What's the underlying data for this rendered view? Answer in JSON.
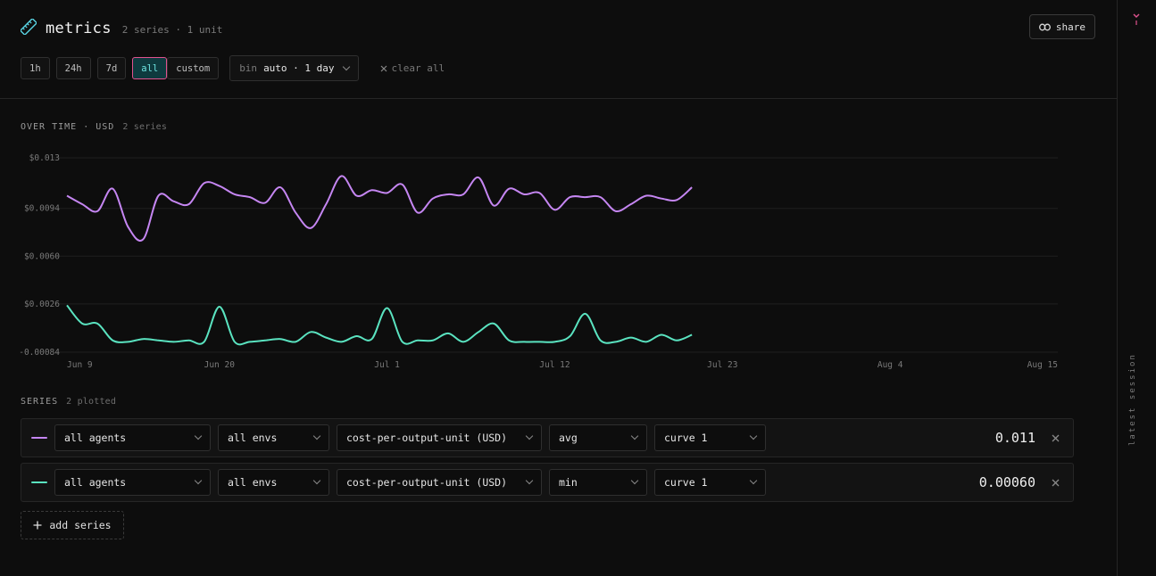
{
  "header": {
    "title": "metrics",
    "meta": "2 series · 1 unit",
    "share_label": "share"
  },
  "controls": {
    "ranges": [
      "1h",
      "24h",
      "7d",
      "all"
    ],
    "custom_label": "custom",
    "active_range": "all",
    "bin_label": "bin",
    "bin_value": "auto · 1 day",
    "clear_label": "clear all"
  },
  "chart_section": {
    "label": "OVER TIME · USD",
    "sub": "2 series"
  },
  "series_section": {
    "label": "SERIES",
    "sub": "2 plotted"
  },
  "series": [
    {
      "color": "#c586f2",
      "agent": "all agents",
      "env": "all envs",
      "metric": "cost-per-output-unit (USD)",
      "agg": "avg",
      "curve": "curve 1",
      "value": "0.011"
    },
    {
      "color": "#5ae3c0",
      "agent": "all agents",
      "env": "all envs",
      "metric": "cost-per-output-unit (USD)",
      "agg": "min",
      "curve": "curve 1",
      "value": "0.00060"
    }
  ],
  "add_series_label": "add series",
  "rail": {
    "label": "latest session",
    "accent": "#e0538f"
  },
  "chart_data": {
    "type": "line",
    "title": "",
    "xlabel": "",
    "ylabel": "",
    "y_tick_labels": [
      "$0.013",
      "$0.0094",
      "$0.0060",
      "$0.0026",
      "-0.00084"
    ],
    "y_tick_values": [
      0.013,
      0.0094,
      0.006,
      0.0026,
      -0.00084
    ],
    "ylim": [
      -0.00084,
      0.013
    ],
    "x_tick_labels": [
      "Jun 9",
      "Jun 20",
      "Jul 1",
      "Jul 12",
      "Jul 23",
      "Aug 4",
      "Aug 15"
    ],
    "x_tick_days": [
      0,
      10,
      21,
      32,
      43,
      54,
      65
    ],
    "xlim_days": [
      0,
      65
    ],
    "grid": true,
    "series": [
      {
        "color": "#c586f2",
        "values": [
          0.0103,
          0.0097,
          0.0092,
          0.0108,
          0.0081,
          0.0072,
          0.0103,
          0.0099,
          0.0097,
          0.0112,
          0.011,
          0.0104,
          0.0102,
          0.0098,
          0.0109,
          0.0091,
          0.008,
          0.0097,
          0.0117,
          0.0103,
          0.0107,
          0.0105,
          0.0111,
          0.0091,
          0.0101,
          0.0104,
          0.0104,
          0.0116,
          0.0096,
          0.0108,
          0.0104,
          0.0105,
          0.0093,
          0.0102,
          0.0102,
          0.0102,
          0.0092,
          0.0097,
          0.0103,
          0.0101,
          0.01,
          0.0109
        ]
      },
      {
        "color": "#5ae3c0",
        "values": [
          0.0025,
          0.0012,
          0.0012,
          0.0,
          -0.0001,
          0.0001,
          0.0,
          -0.0001,
          0.0,
          -0.0001,
          0.0024,
          -0.0001,
          -0.0001,
          0.0,
          0.0001,
          -0.0001,
          0.0006,
          0.0002,
          -0.0001,
          0.0003,
          0.0001,
          0.0023,
          -0.0001,
          0.0,
          0.0,
          0.0005,
          -0.0001,
          0.0006,
          0.0012,
          0.0,
          -0.0001,
          -0.0001,
          -0.0001,
          0.0003,
          0.0019,
          0.0,
          -0.0001,
          0.0002,
          -0.0001,
          0.0004,
          0.0,
          0.0004
        ]
      }
    ]
  }
}
